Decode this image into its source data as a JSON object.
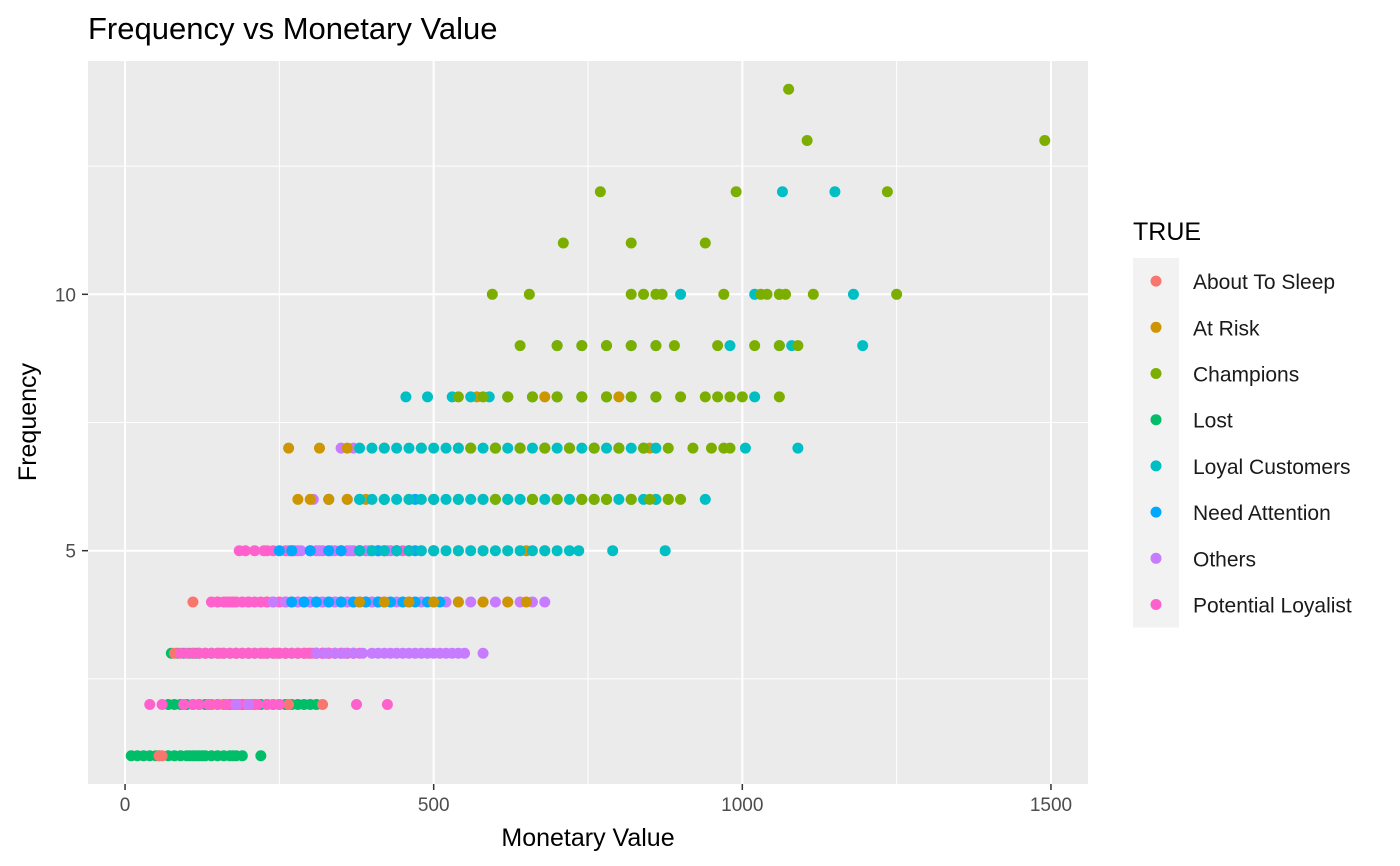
{
  "chart_data": {
    "type": "scatter",
    "title": "Frequency vs Monetary Value",
    "xlabel": "Monetary Value",
    "ylabel": "Frequency",
    "xlim": [
      -60,
      1560
    ],
    "ylim": [
      0.45,
      14.55
    ],
    "x_ticks": [
      0,
      500,
      1000,
      1500
    ],
    "x_tick_labels": [
      "0",
      "500",
      "1000",
      "1500"
    ],
    "y_ticks": [
      5,
      10
    ],
    "y_tick_labels": [
      "5",
      "10"
    ],
    "grid": true,
    "legend": {
      "title": "TRUE",
      "position": "right",
      "entries": [
        "About To Sleep",
        "At Risk",
        "Champions",
        "Lost",
        "Loyal Customers",
        "Need Attention",
        "Others",
        "Potential Loyalist"
      ]
    },
    "colors": {
      "About To Sleep": "#F8766D",
      "At Risk": "#CD9600",
      "Champions": "#7CAE00",
      "Lost": "#00BE67",
      "Loyal Customers": "#00BFC4",
      "Need Attention": "#00A9FF",
      "Others": "#C77CFF",
      "Potential Loyalist": "#FF61CC"
    },
    "series": [
      {
        "name": "Lost",
        "x": [
          10,
          20,
          30,
          40,
          50,
          55,
          70,
          80,
          90,
          100,
          105,
          110,
          115,
          120,
          125,
          130,
          140,
          150,
          160,
          170,
          175,
          180,
          190,
          220,
          70,
          80,
          90,
          100,
          110,
          120,
          130,
          140,
          150,
          160,
          170,
          180,
          190,
          200,
          210,
          220,
          230,
          240,
          250,
          260,
          270,
          280,
          290,
          300,
          310,
          75,
          85,
          95,
          105,
          110,
          115,
          120,
          130,
          140,
          150,
          160,
          170,
          180,
          190,
          200,
          210,
          220,
          230,
          240,
          250,
          260,
          270,
          280,
          290,
          300,
          310,
          320,
          330,
          340,
          350,
          360,
          370
        ],
        "y": [
          1,
          1,
          1,
          1,
          1,
          1,
          1,
          1,
          1,
          1,
          1,
          1,
          1,
          1,
          1,
          1,
          1,
          1,
          1,
          1,
          1,
          1,
          1,
          1,
          2,
          2,
          2,
          2,
          2,
          2,
          2,
          2,
          2,
          2,
          2,
          2,
          2,
          2,
          2,
          2,
          2,
          2,
          2,
          2,
          2,
          2,
          2,
          2,
          2,
          3,
          3,
          3,
          3,
          3,
          3,
          3,
          3,
          3,
          3,
          3,
          3,
          3,
          3,
          3,
          3,
          3,
          3,
          3,
          3,
          3,
          3,
          3,
          3,
          3,
          3,
          3,
          3,
          3,
          3,
          3,
          3
        ]
      },
      {
        "name": "About To Sleep",
        "x": [
          55,
          60,
          140,
          160,
          175,
          200,
          210,
          230,
          265,
          320,
          80,
          120,
          155,
          180,
          200,
          225,
          245,
          260,
          280,
          295,
          305,
          310,
          320,
          330,
          110,
          150,
          175,
          200,
          230,
          260
        ],
        "y": [
          1,
          1,
          2,
          2,
          2,
          2,
          2,
          2,
          2,
          2,
          3,
          3,
          3,
          3,
          3,
          3,
          3,
          3,
          3,
          3,
          3,
          3,
          3,
          3,
          4,
          4,
          4,
          4,
          4,
          4
        ]
      },
      {
        "name": "Potential Loyalist",
        "x": [
          40,
          60,
          95,
          110,
          120,
          135,
          150,
          165,
          175,
          185,
          195,
          205,
          215,
          230,
          240,
          250,
          375,
          425,
          90,
          100,
          110,
          120,
          130,
          140,
          150,
          160,
          170,
          180,
          190,
          200,
          210,
          220,
          230,
          240,
          250,
          260,
          270,
          280,
          290,
          300,
          310,
          320,
          330,
          340,
          350,
          360,
          370,
          380,
          140,
          150,
          160,
          165,
          170,
          180,
          190,
          200,
          210,
          220,
          230,
          240,
          250,
          260,
          270,
          280,
          290,
          300,
          310,
          320,
          330,
          340,
          350,
          360,
          370,
          380,
          390,
          400,
          410,
          420,
          185,
          195,
          210,
          225,
          230,
          240,
          260,
          265,
          270,
          275,
          280,
          300,
          310,
          320,
          330,
          340,
          350,
          360,
          370,
          380,
          390,
          400,
          410,
          420,
          430,
          440,
          450,
          460
        ],
        "y": [
          2,
          2,
          2,
          2,
          2,
          2,
          2,
          2,
          2,
          2,
          2,
          2,
          2,
          2,
          2,
          2,
          2,
          2,
          3,
          3,
          3,
          3,
          3,
          3,
          3,
          3,
          3,
          3,
          3,
          3,
          3,
          3,
          3,
          3,
          3,
          3,
          3,
          3,
          3,
          3,
          3,
          3,
          3,
          3,
          3,
          3,
          3,
          3,
          4,
          4,
          4,
          4,
          4,
          4,
          4,
          4,
          4,
          4,
          4,
          4,
          4,
          4,
          4,
          4,
          4,
          4,
          4,
          4,
          4,
          4,
          4,
          4,
          4,
          4,
          4,
          4,
          4,
          4,
          5,
          5,
          5,
          5,
          5,
          5,
          5,
          5,
          5,
          5,
          5,
          5,
          5,
          5,
          5,
          5,
          5,
          5,
          5,
          5,
          5,
          5,
          5,
          5,
          5,
          5,
          5,
          5
        ]
      },
      {
        "name": "Others",
        "x": [
          180,
          200,
          310,
          325,
          340,
          355,
          370,
          385,
          400,
          410,
          420,
          430,
          440,
          450,
          460,
          470,
          480,
          490,
          500,
          510,
          520,
          530,
          540,
          550,
          580,
          240,
          260,
          280,
          300,
          320,
          340,
          360,
          380,
          400,
          420,
          440,
          460,
          480,
          500,
          520,
          540,
          560,
          580,
          600,
          620,
          640,
          660,
          680,
          270,
          285,
          300,
          315,
          335,
          350,
          365,
          380,
          395,
          410,
          425,
          440,
          460,
          480,
          500,
          360,
          330,
          305,
          350,
          370
        ],
        "y": [
          2,
          2,
          3,
          3,
          3,
          3,
          3,
          3,
          3,
          3,
          3,
          3,
          3,
          3,
          3,
          3,
          3,
          3,
          3,
          3,
          3,
          3,
          3,
          3,
          3,
          4,
          4,
          4,
          4,
          4,
          4,
          4,
          4,
          4,
          4,
          4,
          4,
          4,
          4,
          4,
          4,
          4,
          4,
          4,
          4,
          4,
          4,
          4,
          5,
          5,
          5,
          5,
          5,
          5,
          5,
          5,
          5,
          5,
          5,
          5,
          5,
          5,
          5,
          6,
          6,
          6,
          7,
          7
        ]
      },
      {
        "name": "Need Attention",
        "x": [
          270,
          290,
          310,
          330,
          350,
          370,
          390,
          410,
          430,
          450,
          470,
          490,
          510,
          250,
          270,
          300,
          330,
          350,
          380,
          410,
          440,
          470,
          500,
          330,
          380,
          420,
          470,
          500
        ],
        "y": [
          4,
          4,
          4,
          4,
          4,
          4,
          4,
          4,
          4,
          4,
          4,
          4,
          4,
          5,
          5,
          5,
          5,
          5,
          5,
          5,
          5,
          5,
          5,
          6,
          6,
          6,
          6,
          6
        ]
      },
      {
        "name": "At Risk",
        "x": [
          380,
          420,
          460,
          500,
          540,
          580,
          620,
          650,
          420,
          460,
          500,
          540,
          580,
          620,
          650,
          680,
          280,
          300,
          330,
          360,
          390,
          420,
          460,
          500,
          540,
          580,
          620,
          660,
          700,
          740,
          780,
          820,
          860,
          880,
          265,
          315,
          360,
          420,
          480,
          540,
          600,
          640,
          680,
          720,
          760,
          800,
          850,
          570,
          620,
          680,
          740,
          800,
          860
        ],
        "y": [
          4,
          4,
          4,
          4,
          4,
          4,
          4,
          4,
          5,
          5,
          5,
          5,
          5,
          5,
          5,
          5,
          6,
          6,
          6,
          6,
          6,
          6,
          6,
          6,
          6,
          6,
          6,
          6,
          6,
          6,
          6,
          6,
          6,
          6,
          7,
          7,
          7,
          7,
          7,
          7,
          7,
          7,
          7,
          7,
          7,
          7,
          7,
          8,
          8,
          8,
          8,
          8,
          8
        ]
      },
      {
        "name": "Loyal Customers",
        "x": [
          380,
          400,
          420,
          440,
          460,
          480,
          500,
          520,
          540,
          560,
          580,
          600,
          620,
          640,
          660,
          680,
          700,
          720,
          735,
          790,
          875,
          380,
          400,
          420,
          440,
          460,
          480,
          500,
          520,
          540,
          560,
          580,
          600,
          620,
          640,
          660,
          680,
          700,
          720,
          740,
          760,
          780,
          800,
          820,
          840,
          860,
          940,
          380,
          400,
          420,
          440,
          460,
          480,
          500,
          520,
          540,
          560,
          580,
          600,
          620,
          640,
          660,
          680,
          700,
          720,
          740,
          760,
          780,
          800,
          820,
          840,
          860,
          1005,
          1090,
          455,
          490,
          530,
          560,
          590,
          620,
          660,
          700,
          740,
          780,
          820,
          860,
          1020,
          700,
          740,
          780,
          820,
          860,
          980,
          1060,
          1080,
          1195,
          900,
          1020,
          1060,
          1180,
          1065,
          1150
        ],
        "y": [
          5,
          5,
          5,
          5,
          5,
          5,
          5,
          5,
          5,
          5,
          5,
          5,
          5,
          5,
          5,
          5,
          5,
          5,
          5,
          5,
          5,
          6,
          6,
          6,
          6,
          6,
          6,
          6,
          6,
          6,
          6,
          6,
          6,
          6,
          6,
          6,
          6,
          6,
          6,
          6,
          6,
          6,
          6,
          6,
          6,
          6,
          6,
          7,
          7,
          7,
          7,
          7,
          7,
          7,
          7,
          7,
          7,
          7,
          7,
          7,
          7,
          7,
          7,
          7,
          7,
          7,
          7,
          7,
          7,
          7,
          7,
          7,
          7,
          7,
          8,
          8,
          8,
          8,
          8,
          8,
          8,
          8,
          8,
          8,
          8,
          8,
          8,
          9,
          9,
          9,
          9,
          9,
          9,
          9,
          9,
          9,
          10,
          10,
          10,
          10,
          12,
          12
        ]
      },
      {
        "name": "Champions",
        "x": [
          600,
          660,
          700,
          740,
          760,
          780,
          820,
          850,
          880,
          900,
          560,
          600,
          640,
          680,
          720,
          760,
          800,
          840,
          880,
          920,
          950,
          970,
          980,
          540,
          580,
          620,
          660,
          700,
          740,
          780,
          820,
          860,
          900,
          940,
          960,
          980,
          1000,
          1060,
          640,
          700,
          740,
          780,
          820,
          860,
          890,
          960,
          1020,
          1060,
          1090,
          595,
          655,
          820,
          840,
          860,
          870,
          970,
          1030,
          1040,
          1060,
          1070,
          1115,
          1250,
          710,
          820,
          940,
          770,
          990,
          1235,
          1105,
          1490,
          1075
        ],
        "y": [
          6,
          6,
          6,
          6,
          6,
          6,
          6,
          6,
          6,
          6,
          7,
          7,
          7,
          7,
          7,
          7,
          7,
          7,
          7,
          7,
          7,
          7,
          7,
          8,
          8,
          8,
          8,
          8,
          8,
          8,
          8,
          8,
          8,
          8,
          8,
          8,
          8,
          8,
          9,
          9,
          9,
          9,
          9,
          9,
          9,
          9,
          9,
          9,
          9,
          10,
          10,
          10,
          10,
          10,
          10,
          10,
          10,
          10,
          10,
          10,
          10,
          10,
          11,
          11,
          11,
          12,
          12,
          12,
          13,
          13,
          14
        ]
      }
    ]
  }
}
